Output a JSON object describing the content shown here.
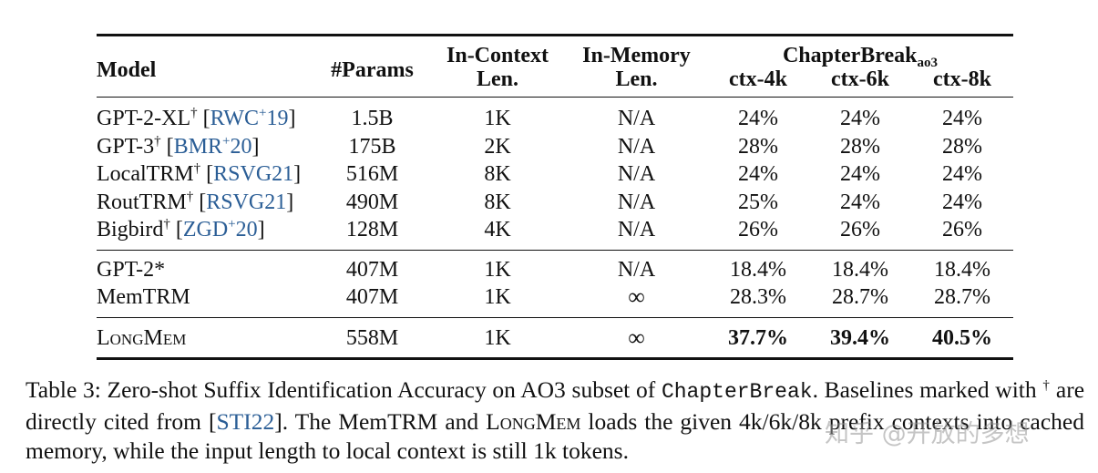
{
  "table": {
    "headers": {
      "model": "Model",
      "params": "#Params",
      "in_context_1": "In-Context",
      "in_context_2": "Len.",
      "in_memory_1": "In-Memory",
      "in_memory_2": "Len.",
      "chapterbreak": "ChapterBreak",
      "chapterbreak_sub": "ao3",
      "ctx4": "ctx-4k",
      "ctx6": "ctx-6k",
      "ctx8": "ctx-8k"
    },
    "group1": [
      {
        "name": "GPT-2-XL",
        "mark": "†",
        "cite_pre": "RWC",
        "cite_sup": "+",
        "cite_post": "19",
        "params": "1.5B",
        "ic": "1K",
        "im": "N/A",
        "c4": "24%",
        "c6": "24%",
        "c8": "24%"
      },
      {
        "name": "GPT-3",
        "mark": "†",
        "cite_pre": "BMR",
        "cite_sup": "+",
        "cite_post": "20",
        "params": "175B",
        "ic": "2K",
        "im": "N/A",
        "c4": "28%",
        "c6": "28%",
        "c8": "28%"
      },
      {
        "name": "LocalTRM",
        "mark": "†",
        "cite_pre": "RSVG21",
        "cite_sup": "",
        "cite_post": "",
        "params": "516M",
        "ic": "8K",
        "im": "N/A",
        "c4": "24%",
        "c6": "24%",
        "c8": "24%"
      },
      {
        "name": "RoutTRM",
        "mark": "†",
        "cite_pre": "RSVG21",
        "cite_sup": "",
        "cite_post": "",
        "params": "490M",
        "ic": "8K",
        "im": "N/A",
        "c4": "25%",
        "c6": "24%",
        "c8": "24%"
      },
      {
        "name": "Bigbird",
        "mark": "†",
        "cite_pre": "ZGD",
        "cite_sup": "+",
        "cite_post": "20",
        "params": "128M",
        "ic": "4K",
        "im": "N/A",
        "c4": "26%",
        "c6": "26%",
        "c8": "26%"
      }
    ],
    "group2": [
      {
        "name": "GPT-2*",
        "params": "407M",
        "ic": "1K",
        "im": "N/A",
        "c4": "18.4%",
        "c6": "18.4%",
        "c8": "18.4%"
      },
      {
        "name": "MemTRM",
        "params": "407M",
        "ic": "1K",
        "im": "∞",
        "c4": "28.3%",
        "c6": "28.7%",
        "c8": "28.7%"
      }
    ],
    "longmem": {
      "name": "LongMem",
      "params": "558M",
      "ic": "1K",
      "im": "∞",
      "c4": "37.7%",
      "c6": "39.4%",
      "c8": "40.5%"
    }
  },
  "caption": {
    "part1": "Table 3: Zero-shot Suffix Identification Accuracy on AO3 subset of ",
    "code": "ChapterBreak",
    "part2": ". Baselines marked with ",
    "dagger": "†",
    "part3": " are directly cited from [",
    "cite": "STI22",
    "part4": "]. The MemTRM and ",
    "longmem": "LongMem",
    "part5": " loads the given 4k/6k/8k prefix contexts into cached memory, while the input length to local context is still 1k tokens."
  },
  "watermark": "知乎 @开放的多想"
}
